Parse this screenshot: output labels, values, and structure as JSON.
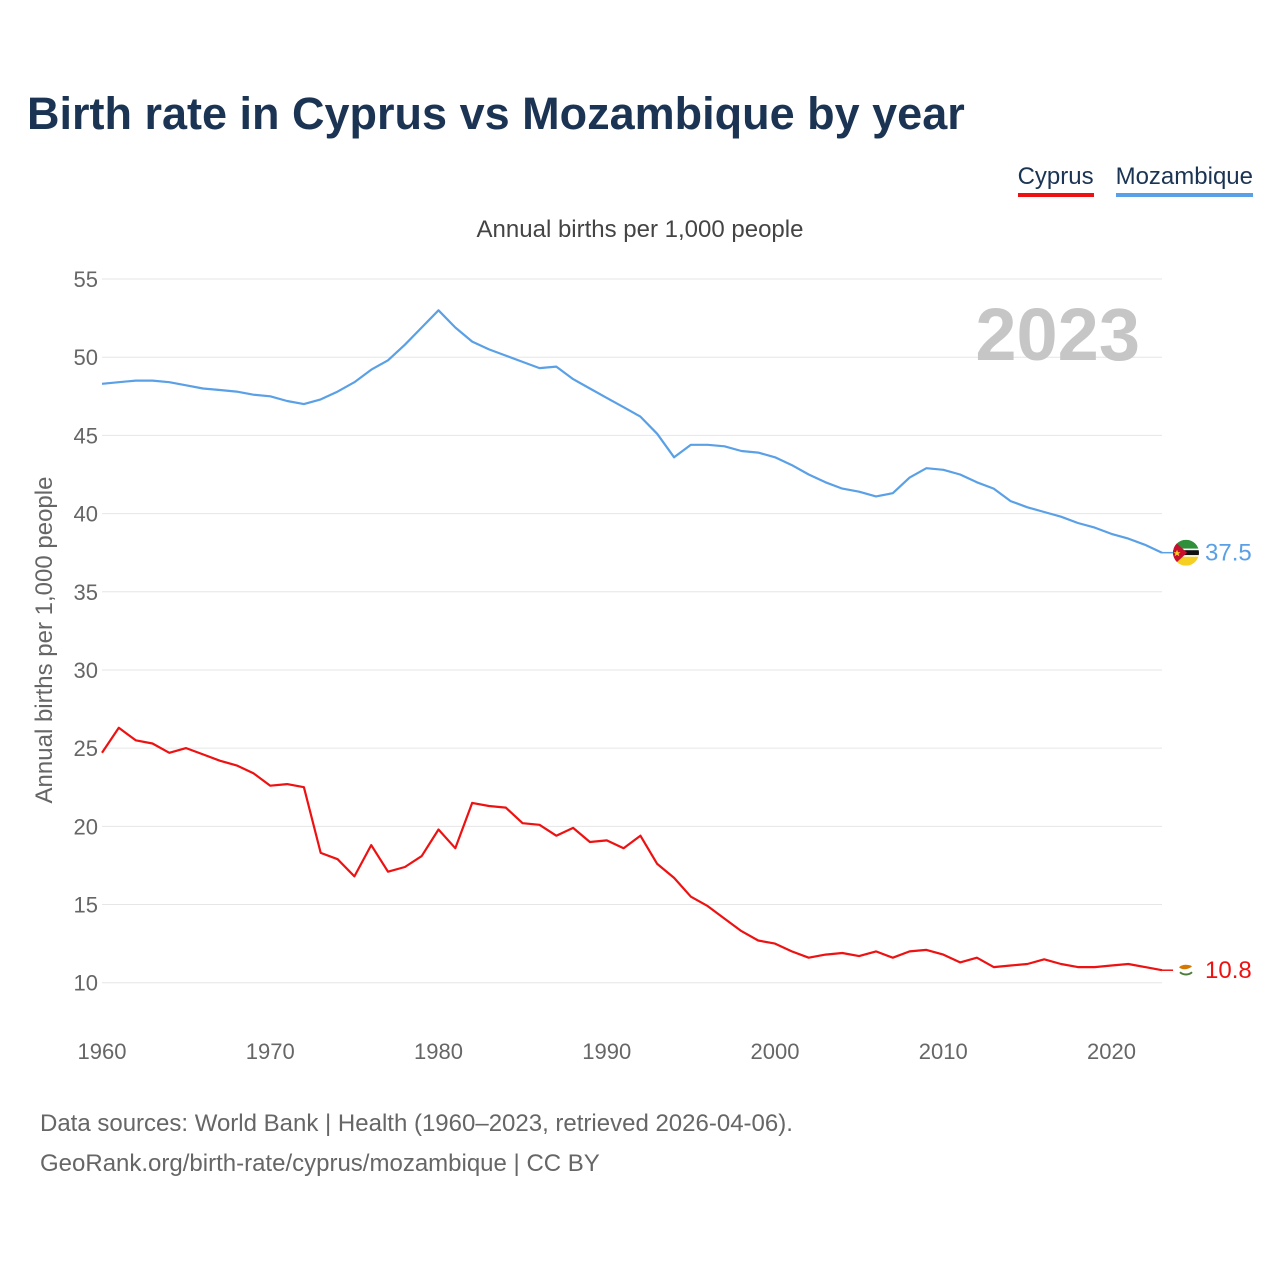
{
  "title": "Birth rate in Cyprus vs Mozambique by year",
  "legend": [
    {
      "name": "Cyprus",
      "color": "#ee1111"
    },
    {
      "name": "Mozambique",
      "color": "#5aa0e6"
    }
  ],
  "subtitle": "Annual births per 1,000 people",
  "year_watermark": "2023",
  "footer": {
    "line1": "Data sources: World Bank | Health (1960–2023, retrieved 2026-04-06).",
    "line2": "GeoRank.org/birth-rate/cyprus/mozambique | CC BY"
  },
  "chart_data": {
    "type": "line",
    "title": "Birth rate in Cyprus vs Mozambique by year",
    "xlabel": "",
    "ylabel": "Annual births per 1,000 people",
    "xlim": [
      1960,
      2023
    ],
    "ylim": [
      7,
      55
    ],
    "yticks": [
      10,
      15,
      20,
      25,
      30,
      35,
      40,
      45,
      50,
      55
    ],
    "xticks": [
      1960,
      1970,
      1980,
      1990,
      2000,
      2010,
      2020
    ],
    "grid": true,
    "legend_position": "top-right",
    "x": [
      1960,
      1961,
      1962,
      1963,
      1964,
      1965,
      1966,
      1967,
      1968,
      1969,
      1970,
      1971,
      1972,
      1973,
      1974,
      1975,
      1976,
      1977,
      1978,
      1979,
      1980,
      1981,
      1982,
      1983,
      1984,
      1985,
      1986,
      1987,
      1988,
      1989,
      1990,
      1991,
      1992,
      1993,
      1994,
      1995,
      1996,
      1997,
      1998,
      1999,
      2000,
      2001,
      2002,
      2003,
      2004,
      2005,
      2006,
      2007,
      2008,
      2009,
      2010,
      2011,
      2012,
      2013,
      2014,
      2015,
      2016,
      2017,
      2018,
      2019,
      2020,
      2021,
      2022,
      2023
    ],
    "series": [
      {
        "name": "Mozambique",
        "color": "#5aa0e6",
        "end_label": "37.5",
        "values": [
          48.3,
          48.4,
          48.5,
          48.5,
          48.4,
          48.2,
          48.0,
          47.9,
          47.8,
          47.6,
          47.5,
          47.2,
          47.0,
          47.3,
          47.8,
          48.4,
          49.2,
          49.8,
          50.8,
          51.9,
          53.0,
          51.9,
          51.0,
          50.5,
          50.1,
          49.7,
          49.3,
          49.4,
          48.6,
          48.0,
          47.4,
          46.8,
          46.2,
          45.1,
          43.6,
          44.4,
          44.4,
          44.3,
          44.0,
          43.9,
          43.6,
          43.1,
          42.5,
          42.0,
          41.6,
          41.4,
          41.1,
          41.3,
          42.3,
          42.9,
          42.8,
          42.5,
          42.0,
          41.6,
          40.8,
          40.4,
          40.1,
          39.8,
          39.4,
          39.1,
          38.7,
          38.4,
          38.0,
          37.5
        ]
      },
      {
        "name": "Cyprus",
        "color": "#ee1111",
        "end_label": "10.8",
        "values": [
          24.7,
          26.3,
          25.5,
          25.3,
          24.7,
          25.0,
          24.6,
          24.2,
          23.9,
          23.4,
          22.6,
          22.7,
          22.5,
          18.3,
          17.9,
          16.8,
          18.8,
          17.1,
          17.4,
          18.1,
          19.8,
          18.6,
          21.5,
          21.3,
          21.2,
          20.2,
          20.1,
          19.4,
          19.9,
          19.0,
          19.1,
          18.6,
          19.4,
          17.6,
          16.7,
          15.5,
          14.9,
          14.1,
          13.3,
          12.7,
          12.5,
          12.0,
          11.6,
          11.8,
          11.9,
          11.7,
          12.0,
          11.6,
          12.0,
          12.1,
          11.8,
          11.3,
          11.6,
          11.0,
          11.1,
          11.2,
          11.5,
          11.2,
          11.0,
          11.0,
          11.1,
          11.2,
          11.0,
          10.8
        ]
      }
    ]
  }
}
